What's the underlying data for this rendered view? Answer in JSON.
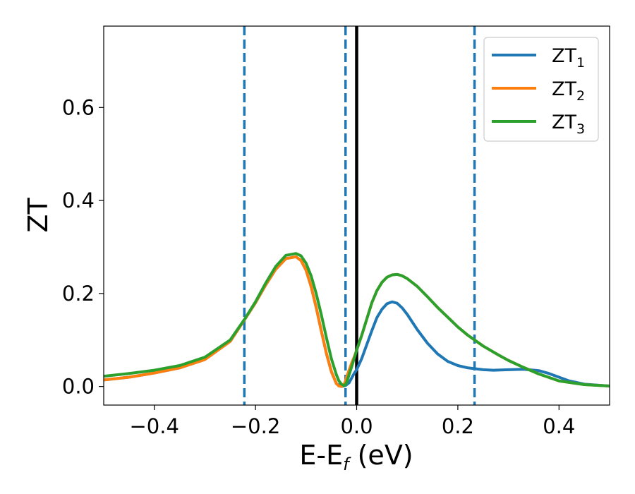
{
  "chart_data": {
    "type": "line",
    "xlabel": {
      "main": "E-E",
      "sub": "f",
      "tail": " (eV)"
    },
    "ylabel": "ZT",
    "xlim": [
      -0.5,
      0.5
    ],
    "ylim": [
      -0.04,
      0.775
    ],
    "xticks": [
      {
        "value": -0.4,
        "label": "−0.4"
      },
      {
        "value": -0.2,
        "label": "−0.2"
      },
      {
        "value": 0.0,
        "label": "0.0"
      },
      {
        "value": 0.2,
        "label": "0.2"
      },
      {
        "value": 0.4,
        "label": "0.4"
      }
    ],
    "yticks": [
      {
        "value": 0.0,
        "label": "0.0"
      },
      {
        "value": 0.2,
        "label": "0.2"
      },
      {
        "value": 0.4,
        "label": "0.4"
      },
      {
        "value": 0.6,
        "label": "0.6"
      }
    ],
    "grid": false,
    "legend_position": "top-right",
    "vertical_lines": [
      {
        "x": -0.222,
        "style": "dashed",
        "color": "#1f77b4"
      },
      {
        "x": -0.022,
        "style": "dashed",
        "color": "#1f77b4"
      },
      {
        "x": 0.0,
        "style": "solid",
        "color": "#000000"
      },
      {
        "x": 0.233,
        "style": "dashed",
        "color": "#1f77b4"
      }
    ],
    "series": [
      {
        "name": {
          "main": "ZT",
          "sub": "1"
        },
        "color": "#1f77b4",
        "x": [
          -0.5,
          -0.45,
          -0.4,
          -0.35,
          -0.3,
          -0.25,
          -0.222,
          -0.2,
          -0.18,
          -0.16,
          -0.14,
          -0.12,
          -0.11,
          -0.1,
          -0.09,
          -0.08,
          -0.07,
          -0.06,
          -0.05,
          -0.04,
          -0.03,
          -0.022,
          -0.015,
          -0.01,
          -0.005,
          0.0,
          0.01,
          0.02,
          0.03,
          0.04,
          0.05,
          0.06,
          0.07,
          0.08,
          0.09,
          0.1,
          0.12,
          0.14,
          0.16,
          0.18,
          0.2,
          0.22,
          0.25,
          0.27,
          0.3,
          0.33,
          0.36,
          0.38,
          0.4,
          0.42,
          0.45,
          0.5
        ],
        "y": [
          0.014,
          0.02,
          0.029,
          0.04,
          0.058,
          0.097,
          0.143,
          0.18,
          0.218,
          0.252,
          0.275,
          0.279,
          0.271,
          0.25,
          0.215,
          0.17,
          0.12,
          0.072,
          0.032,
          0.006,
          0.0,
          0.002,
          0.008,
          0.018,
          0.028,
          0.036,
          0.06,
          0.09,
          0.12,
          0.148,
          0.166,
          0.178,
          0.182,
          0.179,
          0.169,
          0.155,
          0.122,
          0.093,
          0.07,
          0.054,
          0.045,
          0.04,
          0.036,
          0.035,
          0.036,
          0.037,
          0.034,
          0.028,
          0.02,
          0.012,
          0.005,
          0.001
        ]
      },
      {
        "name": {
          "main": "ZT",
          "sub": "2"
        },
        "color": "#ff7f0e",
        "x": [
          -0.5,
          -0.45,
          -0.4,
          -0.35,
          -0.3,
          -0.25,
          -0.222,
          -0.2,
          -0.18,
          -0.16,
          -0.14,
          -0.12,
          -0.11,
          -0.1,
          -0.09,
          -0.08,
          -0.07,
          -0.06,
          -0.05,
          -0.04,
          -0.035,
          -0.03,
          -0.025,
          -0.022,
          -0.02,
          -0.015,
          -0.01,
          -0.005,
          0.0,
          0.01,
          0.02,
          0.03,
          0.04,
          0.05,
          0.06,
          0.07,
          0.08,
          0.09,
          0.1,
          0.12,
          0.14,
          0.16,
          0.18,
          0.2,
          0.22,
          0.25,
          0.28,
          0.3,
          0.33,
          0.36,
          0.4,
          0.45,
          0.5
        ],
        "y": [
          0.014,
          0.02,
          0.029,
          0.04,
          0.058,
          0.097,
          0.143,
          0.18,
          0.218,
          0.252,
          0.275,
          0.279,
          0.271,
          0.25,
          0.215,
          0.17,
          0.12,
          0.072,
          0.032,
          0.006,
          0.001,
          0.0,
          0.004,
          0.012,
          0.02,
          0.035,
          0.05,
          0.063,
          0.078,
          0.11,
          0.145,
          0.18,
          0.206,
          0.224,
          0.235,
          0.24,
          0.241,
          0.238,
          0.232,
          0.215,
          0.193,
          0.17,
          0.149,
          0.128,
          0.11,
          0.087,
          0.068,
          0.056,
          0.041,
          0.027,
          0.012,
          0.004,
          0.001
        ]
      },
      {
        "name": {
          "main": "ZT",
          "sub": "3"
        },
        "color": "#2ca02c",
        "x": [
          -0.5,
          -0.45,
          -0.4,
          -0.35,
          -0.3,
          -0.25,
          -0.222,
          -0.2,
          -0.18,
          -0.16,
          -0.14,
          -0.12,
          -0.11,
          -0.1,
          -0.09,
          -0.08,
          -0.07,
          -0.06,
          -0.05,
          -0.04,
          -0.035,
          -0.03,
          -0.025,
          -0.022,
          -0.02,
          -0.015,
          -0.01,
          -0.005,
          0.0,
          0.01,
          0.02,
          0.03,
          0.04,
          0.05,
          0.06,
          0.07,
          0.08,
          0.09,
          0.1,
          0.12,
          0.14,
          0.16,
          0.18,
          0.2,
          0.22,
          0.25,
          0.28,
          0.3,
          0.33,
          0.36,
          0.4,
          0.45,
          0.5
        ],
        "y": [
          0.022,
          0.028,
          0.035,
          0.045,
          0.063,
          0.1,
          0.144,
          0.182,
          0.222,
          0.258,
          0.282,
          0.286,
          0.281,
          0.265,
          0.238,
          0.2,
          0.155,
          0.106,
          0.06,
          0.025,
          0.012,
          0.005,
          0.002,
          0.004,
          0.008,
          0.025,
          0.042,
          0.06,
          0.078,
          0.11,
          0.145,
          0.18,
          0.206,
          0.224,
          0.235,
          0.24,
          0.241,
          0.238,
          0.232,
          0.215,
          0.193,
          0.17,
          0.149,
          0.128,
          0.11,
          0.087,
          0.068,
          0.056,
          0.041,
          0.027,
          0.012,
          0.004,
          0.001
        ]
      }
    ]
  }
}
